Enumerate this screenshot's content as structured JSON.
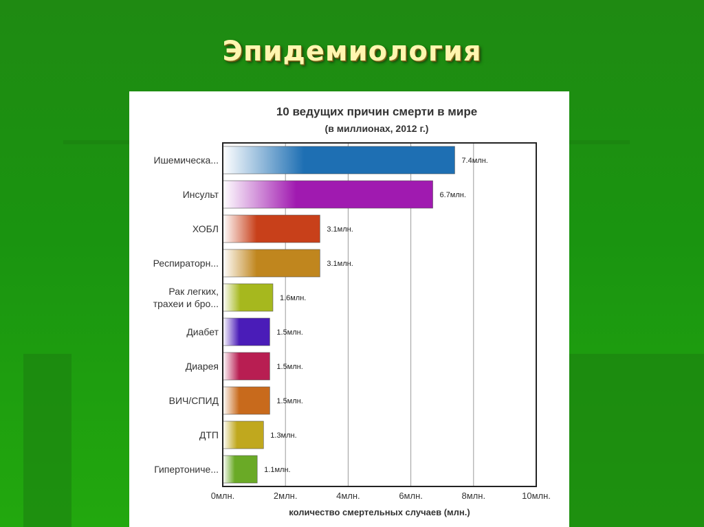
{
  "slide": {
    "title": "Эпидемиология"
  },
  "colors": {
    "background": "#1a9410",
    "title_text": "#fff6b0",
    "panel": "#ffffff",
    "axis": "#222222",
    "grid": "#999999"
  },
  "chart_data": {
    "type": "bar",
    "orientation": "horizontal",
    "title": "10 ведущих причин смерти в мире",
    "subtitle": "(в миллионах, 2012 г.)",
    "xlabel": "количество смертельных случаев (млн.)",
    "ylabel": "",
    "xlim": [
      0,
      10
    ],
    "grid": true,
    "x_ticks": [
      {
        "value": 0,
        "label": "0млн."
      },
      {
        "value": 2,
        "label": "2млн."
      },
      {
        "value": 4,
        "label": "4млн."
      },
      {
        "value": 6,
        "label": "6млн."
      },
      {
        "value": 8,
        "label": "8млн."
      },
      {
        "value": 10,
        "label": "10млн."
      }
    ],
    "bars": [
      {
        "category": [
          "Ишемическа..."
        ],
        "value": 7.4,
        "label": "7.4млн.",
        "color": "#1e6fb3"
      },
      {
        "category": [
          "Инсульт"
        ],
        "value": 6.7,
        "label": "6.7млн.",
        "color": "#a01ab0"
      },
      {
        "category": [
          "ХОБЛ"
        ],
        "value": 3.1,
        "label": "3.1млн.",
        "color": "#c8401a"
      },
      {
        "category": [
          "Респираторн..."
        ],
        "value": 3.1,
        "label": "3.1млн.",
        "color": "#c0861e"
      },
      {
        "category": [
          "Рак легких,",
          "трахеи и бро..."
        ],
        "value": 1.6,
        "label": "1.6млн.",
        "color": "#a6b81e"
      },
      {
        "category": [
          "Диабет"
        ],
        "value": 1.5,
        "label": "1.5млн.",
        "color": "#4a1cb8"
      },
      {
        "category": [
          "Диарея"
        ],
        "value": 1.5,
        "label": "1.5млн.",
        "color": "#b81e52"
      },
      {
        "category": [
          "ВИЧ/СПИД"
        ],
        "value": 1.5,
        "label": "1.5млн.",
        "color": "#c86a1c"
      },
      {
        "category": [
          "ДТП"
        ],
        "value": 1.3,
        "label": "1.3млн.",
        "color": "#c0a81e"
      },
      {
        "category": [
          "Гипертониче..."
        ],
        "value": 1.1,
        "label": "1.1млн.",
        "color": "#6aaa26"
      }
    ]
  }
}
